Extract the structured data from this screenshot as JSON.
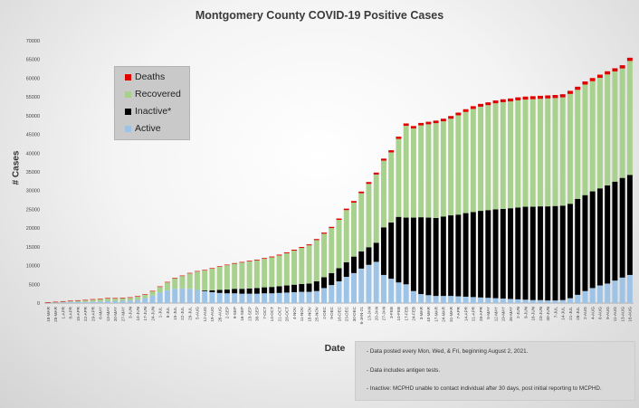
{
  "chart_data": {
    "type": "bar",
    "stacked": true,
    "title": "Montgomery County COVID-19 Positive Cases",
    "ylabel": "# Cases",
    "xlabel": "Date",
    "ylim": [
      0,
      70000
    ],
    "yticks": [
      0,
      5000,
      10000,
      15000,
      20000,
      25000,
      30000,
      35000,
      40000,
      45000,
      50000,
      55000,
      60000,
      65000,
      70000
    ],
    "grid": false,
    "legend_position": "upper-left",
    "categories": [
      "18-MAR",
      "25-MAR",
      "1-APR",
      "8-APR",
      "15-APR",
      "22-APR",
      "29-APR",
      "6-MAY",
      "13-MAY",
      "20-MAY",
      "27-MAY",
      "3-JUN",
      "10-JUN",
      "17-JUN",
      "24-JUN",
      "1-JUL",
      "8-JUL",
      "15-JUL",
      "22-JUL",
      "29-JUL",
      "5-AUG",
      "12-AUG",
      "19-AUG",
      "26-AUG",
      "2-SEP",
      "9-SEP",
      "16-SEP",
      "23-SEP",
      "30-SEP",
      "7-OCT",
      "14-OCT",
      "21-OCT",
      "28-OCT",
      "4-NOV",
      "11-NOV",
      "18-NOV",
      "25-NOV",
      "2-DEC",
      "9-DEC",
      "16-DEC",
      "23-DEC",
      "30-DEC",
      "6-JAN-21",
      "13-JAN",
      "20-JAN",
      "27-JAN",
      "3-FEB",
      "10-FEB",
      "17-FEB",
      "24-FEB",
      "3-MAR",
      "10-MAR",
      "17-MAR",
      "24-MAR",
      "31-MAR",
      "7-APR",
      "14-APR",
      "21-APR",
      "28-APR",
      "5-MAY",
      "12-MAY",
      "19-MAY",
      "26-MAY",
      "2-JUN",
      "9-JUN",
      "16-JUN",
      "23-JUN",
      "30-JUN",
      "7-JUL",
      "14-JUL",
      "21-JUL",
      "28-JUL",
      "2-AUG",
      "4-AUG",
      "6-AUG",
      "9-AUG",
      "11-AUG",
      "13-AUG",
      "16-AUG"
    ],
    "series": [
      {
        "name": "Active",
        "color": "#9dc3e6",
        "values": [
          50,
          100,
          200,
          300,
          300,
          300,
          400,
          400,
          500,
          500,
          600,
          700,
          900,
          1300,
          2000,
          2800,
          3400,
          3800,
          3900,
          3800,
          3500,
          3200,
          2900,
          2700,
          2600,
          2600,
          2500,
          2500,
          2500,
          2600,
          2600,
          2700,
          2800,
          2900,
          3000,
          3000,
          3200,
          4000,
          4800,
          5800,
          7000,
          8000,
          9200,
          10200,
          11000,
          7500,
          6500,
          5500,
          5000,
          3200,
          2400,
          2100,
          1900,
          1900,
          1900,
          1800,
          1700,
          1600,
          1500,
          1400,
          1300,
          1200,
          1100,
          1000,
          900,
          800,
          800,
          700,
          700,
          800,
          1300,
          2200,
          3200,
          4000,
          4700,
          5200,
          6000,
          6800,
          7500
        ]
      },
      {
        "name": "Inactive*",
        "color": "#000000",
        "values": [
          0,
          0,
          0,
          0,
          0,
          0,
          0,
          0,
          0,
          0,
          0,
          0,
          0,
          0,
          0,
          0,
          0,
          0,
          0,
          0,
          0,
          200,
          500,
          800,
          1000,
          1200,
          1300,
          1400,
          1500,
          1600,
          1700,
          1800,
          1900,
          2000,
          2100,
          2200,
          2600,
          2900,
          3200,
          3500,
          3900,
          4400,
          4600,
          4700,
          5100,
          12700,
          15000,
          17500,
          17800,
          19600,
          20500,
          20700,
          20800,
          21200,
          21500,
          21800,
          22300,
          22700,
          23100,
          23400,
          23700,
          23900,
          24200,
          24500,
          24800,
          24900,
          25000,
          25100,
          25200,
          25200,
          25200,
          25600,
          25600,
          25800,
          25900,
          26200,
          26400,
          26600,
          26700
        ]
      },
      {
        "name": "Recovered",
        "color": "#a9d18e",
        "values": [
          50,
          100,
          150,
          200,
          300,
          400,
          500,
          600,
          700,
          700,
          700,
          700,
          800,
          900,
          1100,
          1500,
          2100,
          2800,
          3300,
          4100,
          4900,
          5300,
          5800,
          6200,
          6500,
          6700,
          7000,
          7200,
          7400,
          7600,
          7900,
          8200,
          8600,
          9100,
          9600,
          10200,
          11000,
          11600,
          12000,
          12900,
          13900,
          14400,
          15500,
          16900,
          18200,
          17800,
          18700,
          20800,
          24500,
          23800,
          24500,
          24900,
          25300,
          25400,
          25800,
          26500,
          27000,
          27500,
          27800,
          28000,
          28300,
          28500,
          28500,
          28600,
          28600,
          28700,
          28700,
          28800,
          28800,
          28900,
          29300,
          29100,
          29500,
          29400,
          29500,
          29600,
          29400,
          29200,
          30400
        ]
      },
      {
        "name": "Deaths",
        "color": "#e00000",
        "values": [
          2,
          5,
          8,
          12,
          15,
          20,
          25,
          30,
          35,
          40,
          45,
          50,
          55,
          60,
          65,
          70,
          75,
          80,
          90,
          100,
          110,
          120,
          130,
          140,
          150,
          160,
          170,
          180,
          190,
          200,
          210,
          220,
          230,
          240,
          250,
          260,
          280,
          300,
          330,
          360,
          390,
          420,
          450,
          480,
          510,
          540,
          570,
          600,
          620,
          640,
          660,
          670,
          680,
          690,
          700,
          710,
          720,
          730,
          740,
          750,
          760,
          770,
          780,
          785,
          790,
          795,
          800,
          805,
          810,
          815,
          820,
          825,
          830,
          835,
          840,
          845,
          850,
          855,
          860
        ]
      }
    ]
  },
  "notes": [
    "- Data posted every Mon, Wed, & Fri, beginning August 2, 2021.",
    "- Data includes antigen tests.",
    "- Inactive: MCPHD unable to contact individual after 30 days, post initial reporting to MCPHD."
  ]
}
